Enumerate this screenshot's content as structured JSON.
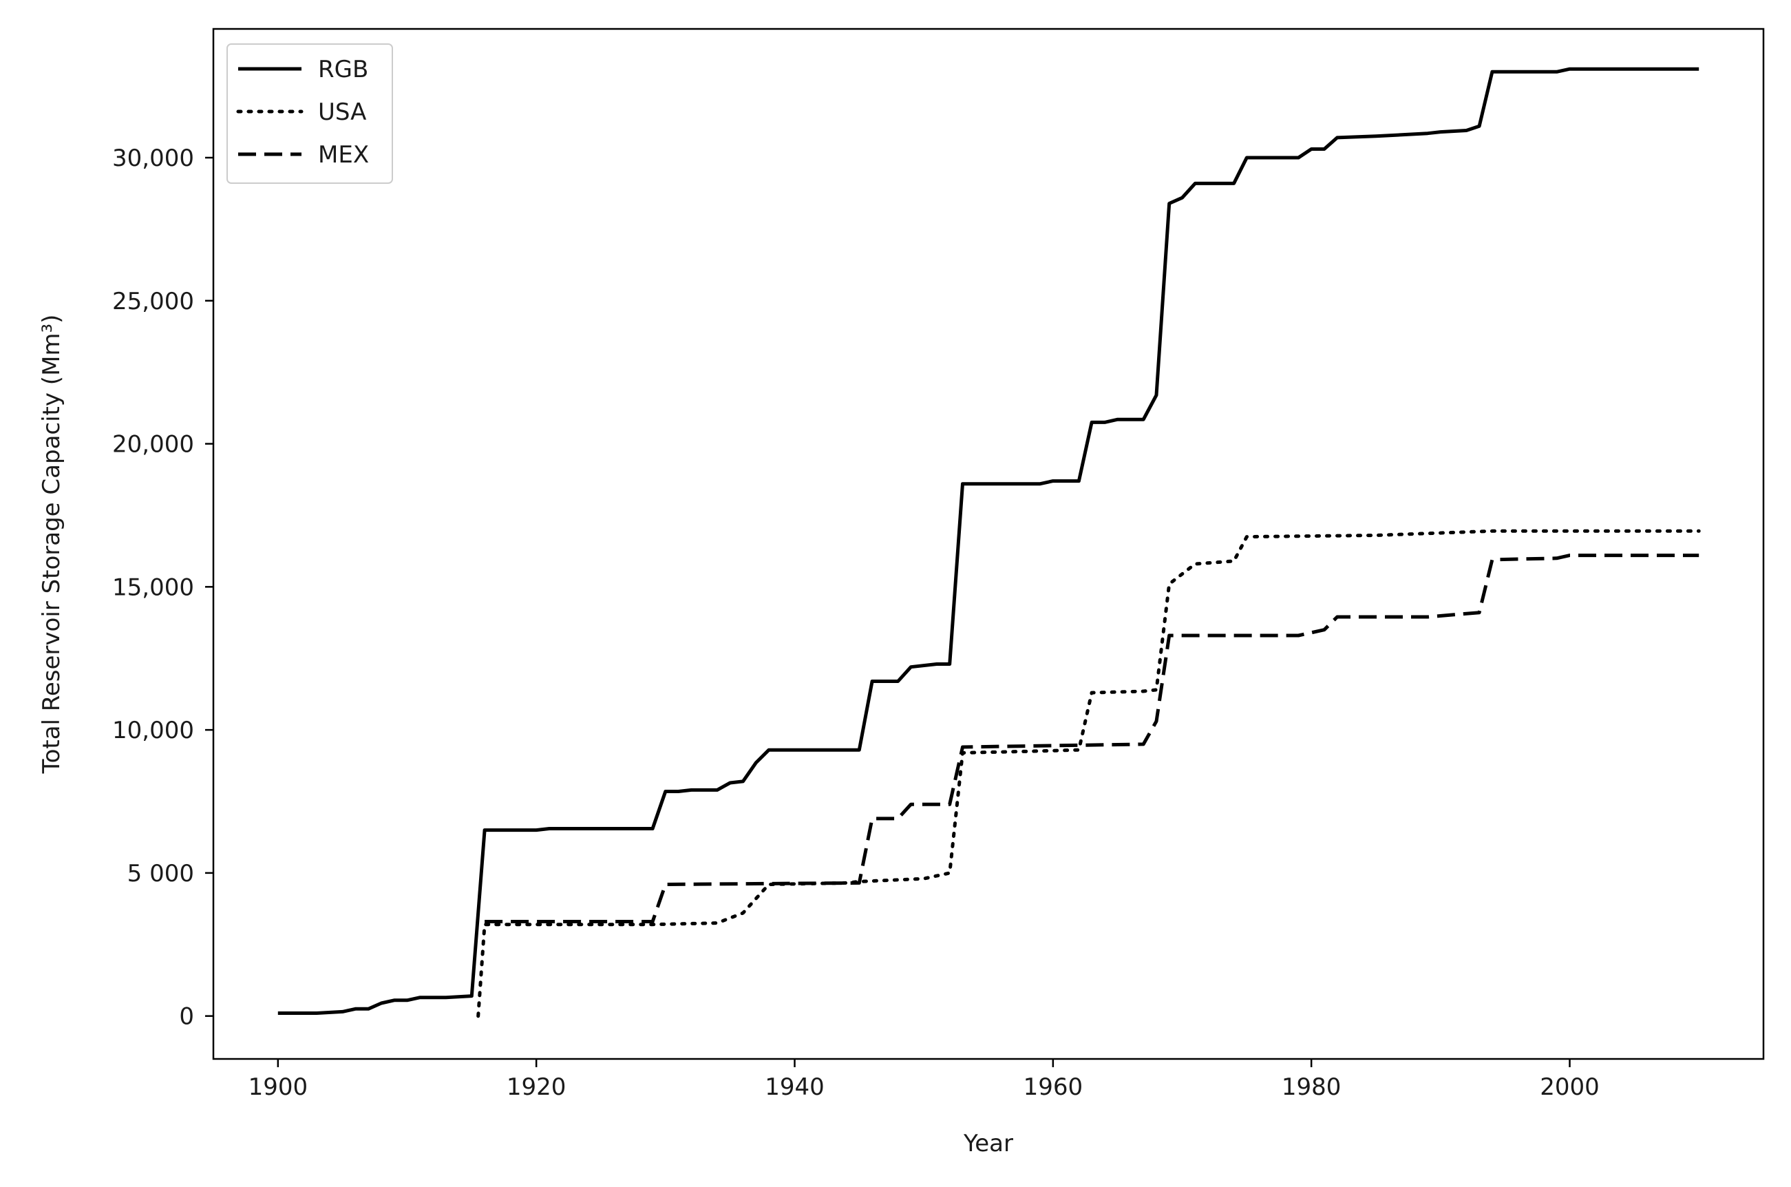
{
  "chart_data": {
    "type": "line",
    "title": "",
    "xlabel": "Year",
    "ylabel": "Total Reservoir Storage Capacity (Mm³)",
    "xlim": [
      1895,
      2015
    ],
    "ylim": [
      -1500,
      34500
    ],
    "x_ticks": [
      {
        "value": 1900,
        "label": "1900"
      },
      {
        "value": 1920,
        "label": "1920"
      },
      {
        "value": 1940,
        "label": "1940"
      },
      {
        "value": 1960,
        "label": "1960"
      },
      {
        "value": 1980,
        "label": "1980"
      },
      {
        "value": 2000,
        "label": "2000"
      }
    ],
    "y_ticks": [
      {
        "value": 0,
        "label": "0"
      },
      {
        "value": 5000,
        "label": "5 000"
      },
      {
        "value": 10000,
        "label": "10,000"
      },
      {
        "value": 15000,
        "label": "15,000"
      },
      {
        "value": 20000,
        "label": "20,000"
      },
      {
        "value": 25000,
        "label": "25,000"
      },
      {
        "value": 30000,
        "label": "30,000"
      }
    ],
    "grid": false,
    "legend": {
      "position": "top-left"
    },
    "series": [
      {
        "name": "RGB",
        "style": "solid",
        "color": "#000000",
        "points": [
          [
            1900,
            100
          ],
          [
            1903,
            100
          ],
          [
            1905,
            150
          ],
          [
            1906,
            250
          ],
          [
            1907,
            250
          ],
          [
            1908,
            450
          ],
          [
            1909,
            550
          ],
          [
            1910,
            550
          ],
          [
            1911,
            650
          ],
          [
            1913,
            650
          ],
          [
            1915,
            700
          ],
          [
            1916,
            6500
          ],
          [
            1920,
            6500
          ],
          [
            1921,
            6550
          ],
          [
            1929,
            6550
          ],
          [
            1930,
            7850
          ],
          [
            1931,
            7850
          ],
          [
            1932,
            7900
          ],
          [
            1934,
            7900
          ],
          [
            1935,
            8150
          ],
          [
            1936,
            8200
          ],
          [
            1937,
            8850
          ],
          [
            1938,
            9300
          ],
          [
            1945,
            9300
          ],
          [
            1946,
            11700
          ],
          [
            1948,
            11700
          ],
          [
            1949,
            12200
          ],
          [
            1951,
            12300
          ],
          [
            1952,
            12300
          ],
          [
            1953,
            18600
          ],
          [
            1959,
            18600
          ],
          [
            1960,
            18700
          ],
          [
            1962,
            18700
          ],
          [
            1963,
            20750
          ],
          [
            1964,
            20750
          ],
          [
            1965,
            20850
          ],
          [
            1967,
            20850
          ],
          [
            1968,
            21700
          ],
          [
            1969,
            28400
          ],
          [
            1970,
            28600
          ],
          [
            1971,
            29100
          ],
          [
            1974,
            29100
          ],
          [
            1975,
            30000
          ],
          [
            1979,
            30000
          ],
          [
            1980,
            30300
          ],
          [
            1981,
            30300
          ],
          [
            1982,
            30700
          ],
          [
            1985,
            30750
          ],
          [
            1987,
            30800
          ],
          [
            1989,
            30850
          ],
          [
            1990,
            30900
          ],
          [
            1992,
            30950
          ],
          [
            1993,
            31100
          ],
          [
            1994,
            33000
          ],
          [
            1999,
            33000
          ],
          [
            2000,
            33100
          ],
          [
            2010,
            33100
          ]
        ]
      },
      {
        "name": "USA",
        "style": "dotted",
        "color": "#000000",
        "points": [
          [
            1915.5,
            0
          ],
          [
            1916,
            3200
          ],
          [
            1921,
            3200
          ],
          [
            1929,
            3200
          ],
          [
            1934,
            3250
          ],
          [
            1936,
            3600
          ],
          [
            1938,
            4600
          ],
          [
            1944,
            4650
          ],
          [
            1945,
            4700
          ],
          [
            1950,
            4800
          ],
          [
            1952,
            5000
          ],
          [
            1953,
            9200
          ],
          [
            1958,
            9250
          ],
          [
            1962,
            9300
          ],
          [
            1963,
            11300
          ],
          [
            1967,
            11350
          ],
          [
            1968,
            11400
          ],
          [
            1969,
            15100
          ],
          [
            1971,
            15800
          ],
          [
            1974,
            15900
          ],
          [
            1975,
            16750
          ],
          [
            1985,
            16800
          ],
          [
            1994,
            16950
          ],
          [
            2010,
            16950
          ]
        ]
      },
      {
        "name": "MEX",
        "style": "dashed",
        "color": "#000000",
        "points": [
          [
            1916,
            3300
          ],
          [
            1929,
            3300
          ],
          [
            1930,
            4600
          ],
          [
            1945,
            4650
          ],
          [
            1946,
            6900
          ],
          [
            1948,
            6900
          ],
          [
            1949,
            7400
          ],
          [
            1952,
            7400
          ],
          [
            1953,
            9400
          ],
          [
            1967,
            9500
          ],
          [
            1968,
            10300
          ],
          [
            1969,
            13300
          ],
          [
            1979,
            13300
          ],
          [
            1981,
            13500
          ],
          [
            1982,
            13950
          ],
          [
            1989,
            13950
          ],
          [
            1993,
            14100
          ],
          [
            1994,
            15950
          ],
          [
            1999,
            16000
          ],
          [
            2000,
            16100
          ],
          [
            2010,
            16100
          ]
        ]
      }
    ]
  }
}
